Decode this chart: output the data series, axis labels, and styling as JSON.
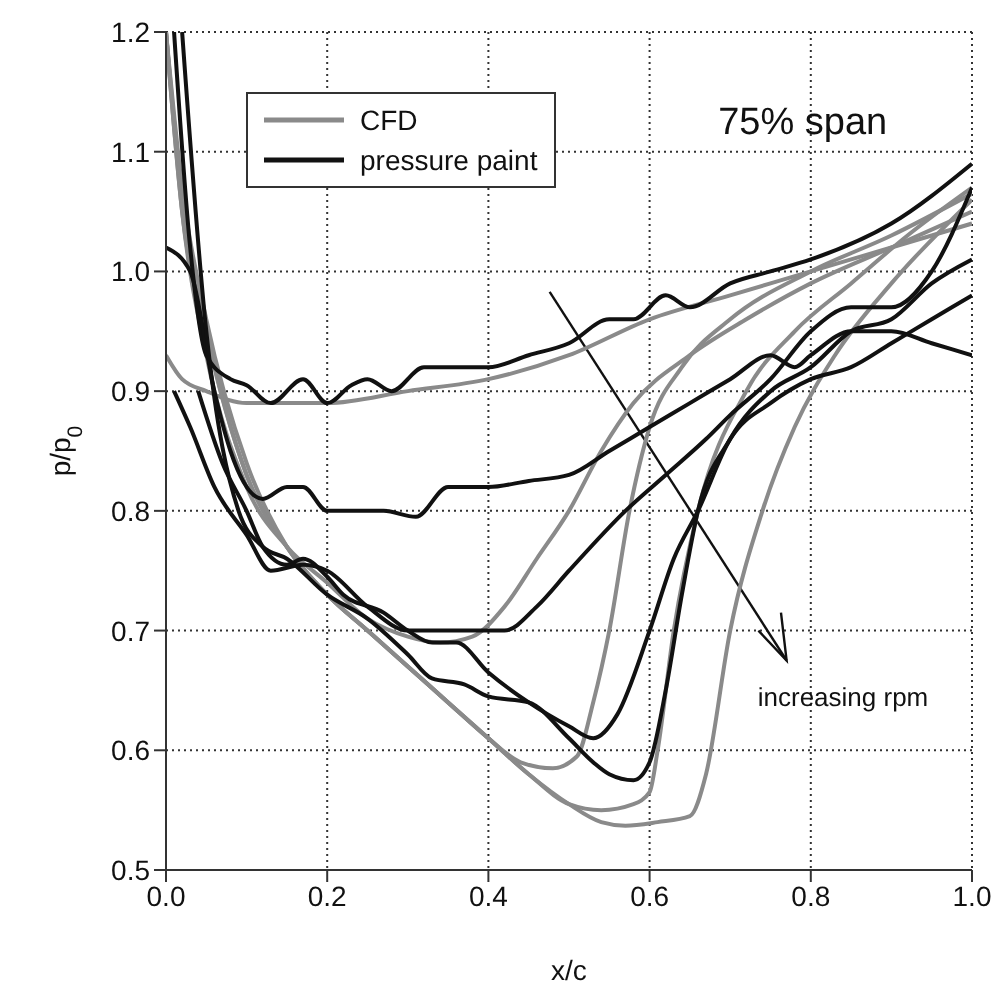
{
  "chart_data": {
    "type": "line",
    "xlabel": "x/c",
    "ylabel": "p/p$_{0}$",
    "xlim": [
      0,
      1
    ],
    "ylim": [
      0.5,
      1.2
    ],
    "xticks": [
      {
        "value": 0,
        "label": "0.0"
      },
      0.2,
      0.4,
      0.6,
      0.8,
      {
        "value": 1,
        "label": "1.0"
      }
    ],
    "yticks": [
      0.5,
      0.6,
      0.7,
      0.8,
      0.9,
      {
        "value": 1,
        "label": "1.0"
      },
      1.1,
      1.2
    ],
    "grid": true,
    "legend": "top left",
    "marker": "none",
    "line_style": "solid",
    "annotations": [
      "75% span",
      "increasing rpm"
    ],
    "series": [
      {
        "name": "CFD",
        "color": "#8a8a8a",
        "x": [
          0,
          0.02,
          0.05,
          0.1,
          0.15,
          0.2,
          0.3,
          0.4,
          0.5,
          0.6,
          0.7,
          0.8,
          0.9,
          1.0
        ],
        "values": [
          0.93,
          0.91,
          0.9,
          0.89,
          0.89,
          0.89,
          0.9,
          0.91,
          0.93,
          0.96,
          0.98,
          1.0,
          1.02,
          1.04
        ]
      },
      {
        "color": "#8a8a8a",
        "x": [
          0,
          0.02,
          0.05,
          0.1,
          0.15,
          0.2,
          0.25,
          0.3,
          0.34,
          0.38,
          0.42,
          0.46,
          0.5,
          0.54,
          0.58,
          0.65,
          0.72,
          0.8,
          0.9,
          1.0
        ],
        "values": [
          1.2,
          1.05,
          0.93,
          0.82,
          0.77,
          0.74,
          0.71,
          0.695,
          0.69,
          0.695,
          0.72,
          0.76,
          0.8,
          0.85,
          0.89,
          0.93,
          0.96,
          0.99,
          1.02,
          1.05
        ]
      },
      {
        "color": "#8a8a8a",
        "x": [
          0,
          0.02,
          0.05,
          0.1,
          0.15,
          0.2,
          0.25,
          0.3,
          0.35,
          0.4,
          0.44,
          0.48,
          0.51,
          0.53,
          0.55,
          0.575,
          0.6,
          0.64,
          0.7,
          0.8,
          0.9,
          1.0
        ],
        "values": [
          1.2,
          1.05,
          0.95,
          0.83,
          0.77,
          0.73,
          0.7,
          0.67,
          0.64,
          0.61,
          0.59,
          0.585,
          0.595,
          0.64,
          0.7,
          0.8,
          0.87,
          0.92,
          0.96,
          1.0,
          1.03,
          1.065
        ]
      },
      {
        "color": "#8a8a8a",
        "x": [
          0,
          0.02,
          0.05,
          0.1,
          0.15,
          0.2,
          0.25,
          0.3,
          0.35,
          0.4,
          0.45,
          0.5,
          0.54,
          0.58,
          0.6,
          0.61,
          0.63,
          0.66,
          0.72,
          0.78,
          0.85,
          0.92,
          1.0
        ],
        "values": [
          1.2,
          1.06,
          0.95,
          0.83,
          0.77,
          0.73,
          0.7,
          0.67,
          0.64,
          0.61,
          0.58,
          0.555,
          0.55,
          0.555,
          0.565,
          0.6,
          0.7,
          0.8,
          0.9,
          0.95,
          0.99,
          1.03,
          1.07
        ]
      },
      {
        "color": "#8a8a8a",
        "x": [
          0,
          0.02,
          0.05,
          0.1,
          0.15,
          0.2,
          0.25,
          0.3,
          0.35,
          0.4,
          0.45,
          0.5,
          0.54,
          0.57,
          0.61,
          0.65,
          0.67,
          0.7,
          0.74,
          0.78,
          0.83,
          0.9,
          1.0
        ],
        "values": [
          1.2,
          1.07,
          0.96,
          0.84,
          0.77,
          0.73,
          0.7,
          0.67,
          0.64,
          0.61,
          0.58,
          0.555,
          0.54,
          0.537,
          0.54,
          0.545,
          0.58,
          0.7,
          0.8,
          0.87,
          0.93,
          0.99,
          1.06
        ]
      },
      {
        "name": "pressure paint",
        "color": "#111111",
        "x": [
          0.01,
          0.03,
          0.05,
          0.08,
          0.1,
          0.13,
          0.17,
          0.2,
          0.23,
          0.25,
          0.28,
          0.32,
          0.36,
          0.4,
          0.45,
          0.5,
          0.55,
          0.58,
          0.62,
          0.65,
          0.7,
          0.75,
          0.8,
          0.9,
          1.0
        ],
        "values": [
          1.2,
          1.02,
          0.93,
          0.91,
          0.905,
          0.89,
          0.91,
          0.89,
          0.905,
          0.91,
          0.9,
          0.92,
          0.92,
          0.92,
          0.93,
          0.94,
          0.96,
          0.96,
          0.98,
          0.97,
          0.99,
          1.0,
          1.01,
          1.04,
          1.09
        ]
      },
      {
        "color": "#111111",
        "x": [
          0,
          0.03,
          0.06,
          0.08,
          0.12,
          0.15,
          0.17,
          0.2,
          0.22,
          0.27,
          0.31,
          0.35,
          0.4,
          0.45,
          0.5,
          0.55,
          0.6,
          0.65,
          0.7,
          0.75,
          0.78,
          0.8,
          0.85,
          0.9,
          0.95,
          1.0
        ],
        "values": [
          1.02,
          1.0,
          0.9,
          0.85,
          0.81,
          0.82,
          0.82,
          0.8,
          0.8,
          0.8,
          0.795,
          0.82,
          0.82,
          0.825,
          0.83,
          0.85,
          0.87,
          0.89,
          0.91,
          0.93,
          0.92,
          0.93,
          0.95,
          0.95,
          0.94,
          0.93
        ]
      },
      {
        "color": "#111111",
        "x": [
          0.01,
          0.03,
          0.06,
          0.1,
          0.13,
          0.17,
          0.2,
          0.25,
          0.3,
          0.35,
          0.42,
          0.46,
          0.5,
          0.57,
          0.62,
          0.67,
          0.7,
          0.75,
          0.8,
          0.85,
          0.9,
          0.95,
          1.0
        ],
        "values": [
          0.9,
          0.87,
          0.82,
          0.78,
          0.75,
          0.755,
          0.75,
          0.72,
          0.7,
          0.7,
          0.7,
          0.72,
          0.75,
          0.8,
          0.83,
          0.86,
          0.88,
          0.91,
          0.95,
          0.97,
          0.97,
          1.0,
          1.07
        ]
      },
      {
        "color": "#111111",
        "x": [
          0.04,
          0.07,
          0.1,
          0.12,
          0.15,
          0.17,
          0.2,
          0.22,
          0.27,
          0.3,
          0.33,
          0.36,
          0.4,
          0.45,
          0.5,
          0.53,
          0.56,
          0.6,
          0.63,
          0.66,
          0.7,
          0.75,
          0.8,
          0.85,
          0.9,
          0.95,
          1.0
        ],
        "values": [
          0.9,
          0.84,
          0.8,
          0.77,
          0.755,
          0.76,
          0.745,
          0.73,
          0.715,
          0.7,
          0.69,
          0.69,
          0.665,
          0.64,
          0.62,
          0.61,
          0.63,
          0.7,
          0.76,
          0.8,
          0.86,
          0.89,
          0.91,
          0.92,
          0.94,
          0.96,
          0.98
        ]
      },
      {
        "color": "#111111",
        "x": [
          0.02,
          0.05,
          0.09,
          0.12,
          0.15,
          0.2,
          0.25,
          0.3,
          0.33,
          0.37,
          0.4,
          0.45,
          0.5,
          0.53,
          0.55,
          0.58,
          0.6,
          0.62,
          0.64,
          0.66,
          0.7,
          0.75,
          0.8,
          0.85,
          0.9,
          0.95,
          1.0
        ],
        "values": [
          1.2,
          0.95,
          0.8,
          0.77,
          0.76,
          0.73,
          0.71,
          0.68,
          0.66,
          0.655,
          0.645,
          0.64,
          0.61,
          0.59,
          0.58,
          0.575,
          0.59,
          0.65,
          0.73,
          0.8,
          0.86,
          0.9,
          0.92,
          0.95,
          0.96,
          0.99,
          1.01
        ]
      }
    ]
  }
}
